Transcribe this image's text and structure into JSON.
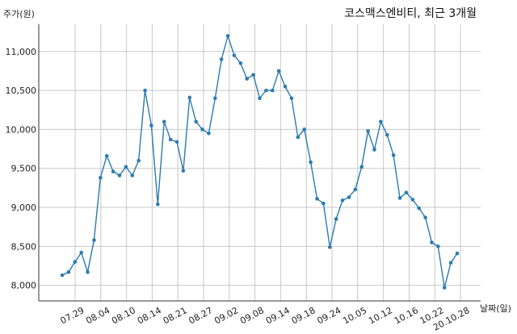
{
  "chart_data": {
    "type": "line",
    "title": "코스맥스엔비티, 최근 3개월",
    "ylabel": "주가(원)",
    "xlabel": "날짜(일)",
    "ylim": [
      7800,
      11350
    ],
    "yticks": [
      8000,
      8500,
      9000,
      9500,
      10000,
      10500,
      11000
    ],
    "ytick_labels": [
      "8,000",
      "8,500",
      "9,000",
      "9,500",
      "10,000",
      "10,500",
      "11,000"
    ],
    "xtick_labels": [
      "07.29",
      "08.04",
      "08.10",
      "08.14",
      "08.21",
      "08.27",
      "09.02",
      "09.08",
      "09.14",
      "09.18",
      "09.24",
      "10.05",
      "10.12",
      "10.16",
      "10.22",
      "20.10.28"
    ],
    "grid": true,
    "colors": {
      "line": "#2b7bb0",
      "marker": "#2b7bb0",
      "grid": "#c8c8c8"
    },
    "series": [
      {
        "values": [
          8130,
          8170,
          8300,
          8420,
          8170,
          8580,
          9380,
          9660,
          9460,
          9410,
          9520,
          9410,
          9600,
          10500,
          10050,
          9040,
          10100,
          9870,
          9840,
          9470,
          10410,
          10100,
          10000,
          9950,
          10400,
          10900,
          11200,
          10950,
          10850,
          10650,
          10700,
          10400,
          10500,
          10500,
          10750,
          10550,
          10400,
          9900,
          10000,
          9580,
          9110,
          9050,
          8490,
          8850,
          9090,
          9130,
          9230,
          9520,
          9980,
          9740,
          10100,
          9930,
          9670,
          9120,
          9190,
          9100,
          8990,
          8870,
          8550,
          8500,
          7970,
          8290,
          8410
        ]
      }
    ]
  }
}
